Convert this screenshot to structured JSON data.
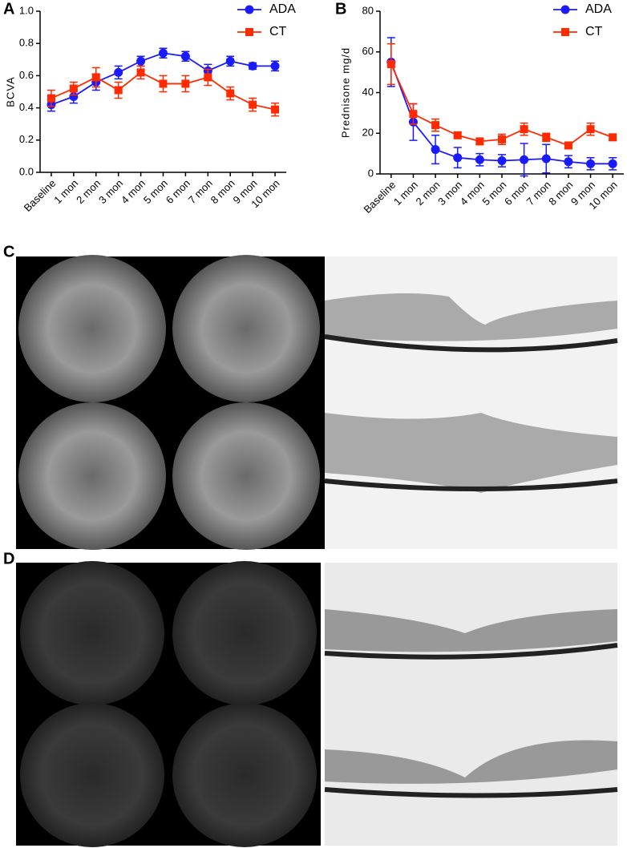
{
  "panel_labels": [
    "A",
    "B",
    "C",
    "D"
  ],
  "chart_data": [
    {
      "type": "line",
      "ylabel": "BCVA",
      "categories": [
        "Baseline",
        "1 mon",
        "2 mon",
        "3 mon",
        "4 mon",
        "5 mon",
        "6 mon",
        "7 mon",
        "8 mon",
        "9 mon",
        "10 mon"
      ],
      "series": [
        {
          "name": "ADA",
          "color": "#1a1aff",
          "marker": "circle",
          "values": [
            0.42,
            0.47,
            0.56,
            0.62,
            0.69,
            0.74,
            0.72,
            0.63,
            0.69,
            0.66,
            0.66
          ],
          "errors": [
            0.04,
            0.04,
            0.05,
            0.04,
            0.03,
            0.03,
            0.03,
            0.04,
            0.03,
            0.02,
            0.03
          ]
        },
        {
          "name": "CT",
          "color": "#ff2a00",
          "marker": "square",
          "values": [
            0.46,
            0.52,
            0.59,
            0.51,
            0.62,
            0.55,
            0.55,
            0.59,
            0.49,
            0.42,
            0.39
          ],
          "errors": [
            0.05,
            0.04,
            0.06,
            0.05,
            0.04,
            0.05,
            0.05,
            0.05,
            0.04,
            0.04,
            0.04
          ]
        }
      ],
      "ylim": [
        0,
        1
      ],
      "yticks": [
        {
          "value": 0,
          "label": "0.0"
        },
        0.2,
        0.4,
        0.6,
        0.8,
        {
          "value": 1,
          "label": "1.0"
        }
      ],
      "legend": "upper right",
      "grid": false
    },
    {
      "type": "line",
      "ylabel": "Prednisone mg/d",
      "categories": [
        "Baseline",
        "1 mon",
        "2 mon",
        "3 mon",
        "4 mon",
        "5 mon",
        "6 mon",
        "7 mon",
        "8 mon",
        "9 mon",
        "10 mon"
      ],
      "series": [
        {
          "name": "ADA",
          "color": "#1a1aff",
          "marker": "circle",
          "values": [
            55,
            25.5,
            12,
            8,
            7,
            6.5,
            7,
            7.5,
            6,
            5,
            5
          ],
          "errors": [
            12,
            9,
            7,
            5,
            3,
            3,
            8,
            7,
            3,
            3,
            3
          ]
        },
        {
          "name": "CT",
          "color": "#ff2a00",
          "marker": "square",
          "values": [
            54,
            29.5,
            24,
            19,
            16,
            17,
            22,
            18,
            14,
            22,
            18
          ],
          "errors": [
            10,
            5,
            3,
            1.5,
            1.5,
            2.5,
            3,
            2,
            1,
            3,
            1.5
          ]
        }
      ],
      "ylim": [
        0,
        80
      ],
      "yticks": [
        0,
        20,
        40,
        60,
        80
      ],
      "legend": "upper right",
      "grid": false
    }
  ]
}
